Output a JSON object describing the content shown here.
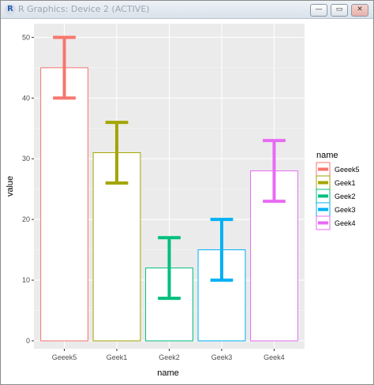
{
  "window": {
    "title": "R Graphics: Device 2 (ACTIVE)",
    "app_icon_letter": "R",
    "minimize_glyph": "—",
    "maximize_glyph": "▭",
    "close_glyph": "✕"
  },
  "chart_data": {
    "type": "bar",
    "categories": [
      "Geeek5",
      "Geek1",
      "Geek2",
      "Geek3",
      "Geek4"
    ],
    "values": [
      45,
      31,
      12,
      15,
      28
    ],
    "error_low": [
      40,
      26,
      7,
      10,
      23
    ],
    "error_high": [
      50,
      36,
      17,
      20,
      33
    ],
    "colors": [
      "#f8766d",
      "#a3a500",
      "#00bf7d",
      "#00b0f6",
      "#e76bf3"
    ],
    "xlabel": "name",
    "ylabel": "value",
    "ylim": [
      0,
      52
    ],
    "yticks": [
      0,
      10,
      20,
      30,
      40,
      50
    ],
    "legend": {
      "title": "name",
      "entries": [
        "Geeek5",
        "Geek1",
        "Geek2",
        "Geek3",
        "Geek4"
      ],
      "placement": "right"
    },
    "grid": true,
    "panel_background": "#ebebeb"
  }
}
